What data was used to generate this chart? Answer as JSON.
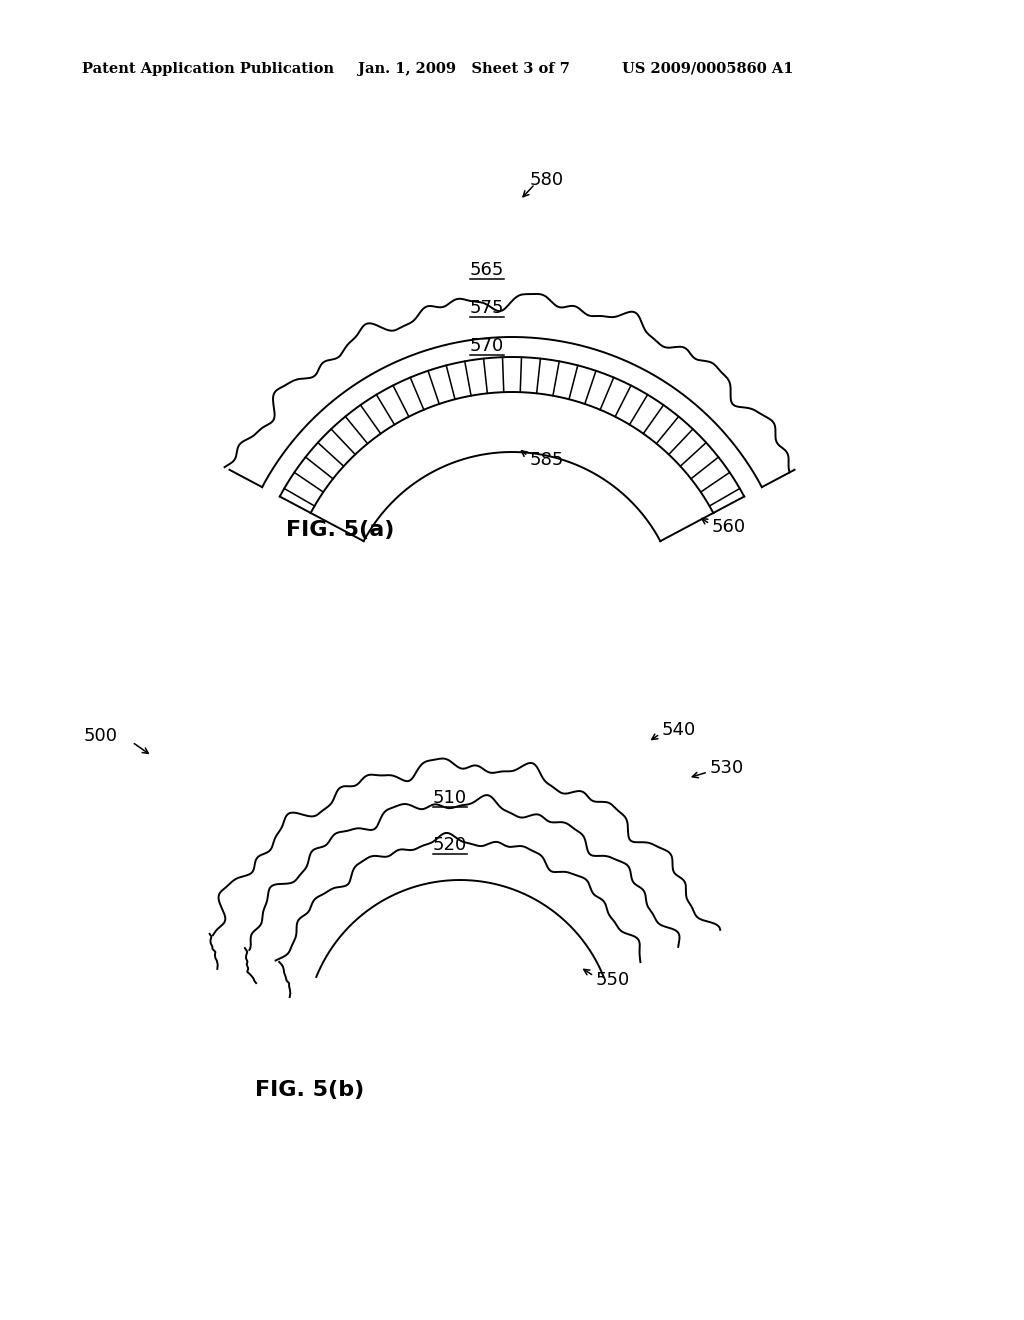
{
  "bg_color": "#ffffff",
  "header_left": "Patent Application Publication",
  "header_mid": "Jan. 1, 2009   Sheet 3 of 7",
  "header_right": "US 2009/0005860 A1",
  "fig_a_label": "FIG. 5(a)",
  "fig_b_label": "FIG. 5(b)",
  "label_580": "580",
  "label_565": "565",
  "label_575": "575",
  "label_570": "570",
  "label_585": "585",
  "label_560": "560",
  "label_500": "500",
  "label_510": "510",
  "label_520": "520",
  "label_530": "530",
  "label_540": "540",
  "label_550": "550",
  "line_color": "#000000"
}
